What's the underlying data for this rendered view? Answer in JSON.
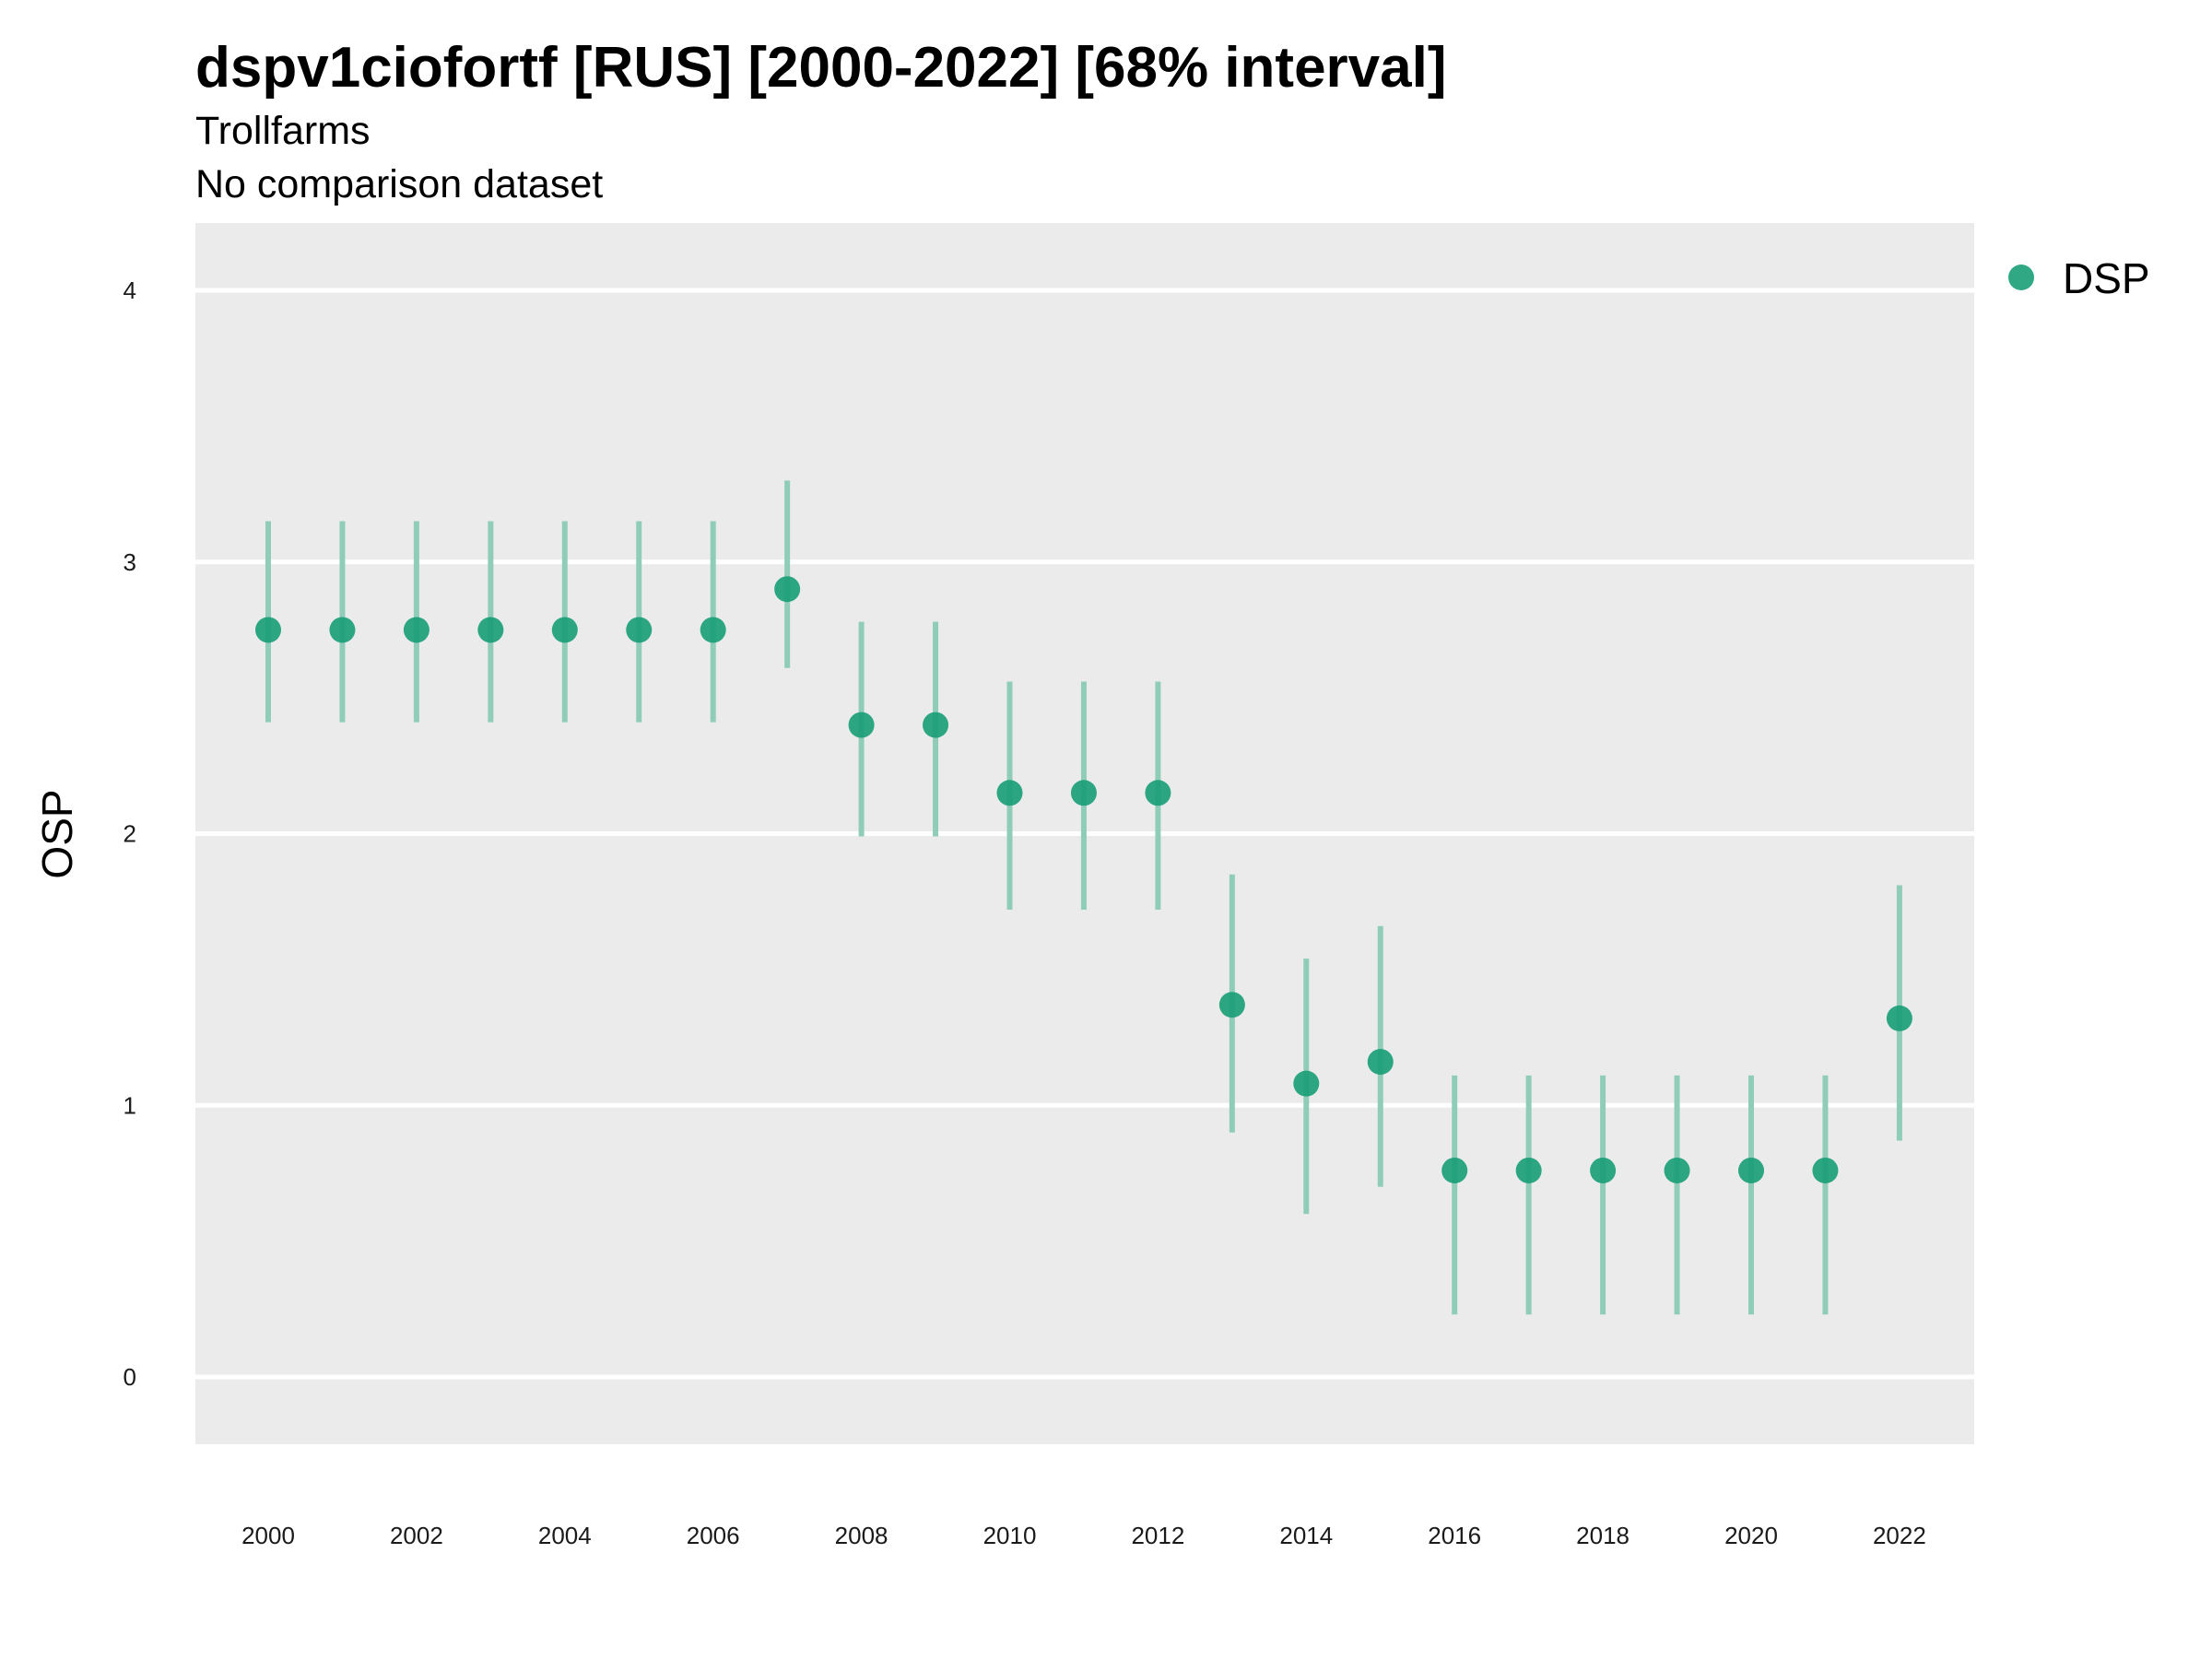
{
  "chart_data": {
    "type": "scatter",
    "title": "dspv1ciofortf [RUS] [2000-2022] [68% interval]",
    "subtitle": "Trollfarms",
    "caption_line": "No comparison dataset",
    "xlabel": "",
    "ylabel": "OSP",
    "xlim": [
      1999,
      2023
    ],
    "ylim": [
      -0.25,
      4.25
    ],
    "x_ticks": [
      2000,
      2002,
      2004,
      2006,
      2008,
      2010,
      2012,
      2014,
      2016,
      2018,
      2020,
      2022
    ],
    "y_ticks": [
      0,
      1,
      2,
      3,
      4
    ],
    "grid": true,
    "legend_position": "right",
    "colors": {
      "panel_background": "#ebebeb",
      "grid": "#ffffff",
      "point": "#1b9e77",
      "interval": "#8fcdb9"
    },
    "series": [
      {
        "name": "DSP",
        "x": [
          2000,
          2001,
          2002,
          2003,
          2004,
          2005,
          2006,
          2007,
          2008,
          2009,
          2010,
          2011,
          2012,
          2013,
          2014,
          2015,
          2016,
          2017,
          2018,
          2019,
          2020,
          2021,
          2022
        ],
        "y": [
          2.75,
          2.75,
          2.75,
          2.75,
          2.75,
          2.75,
          2.75,
          2.9,
          2.4,
          2.4,
          2.15,
          2.15,
          2.15,
          1.37,
          1.08,
          1.16,
          0.76,
          0.76,
          0.76,
          0.76,
          0.76,
          0.76,
          1.32
        ],
        "lower": [
          2.41,
          2.41,
          2.41,
          2.41,
          2.41,
          2.41,
          2.41,
          2.61,
          1.99,
          1.99,
          1.72,
          1.72,
          1.72,
          0.9,
          0.6,
          0.7,
          0.23,
          0.23,
          0.23,
          0.23,
          0.23,
          0.23,
          0.87
        ],
        "upper": [
          3.15,
          3.15,
          3.15,
          3.15,
          3.15,
          3.15,
          3.15,
          3.3,
          2.78,
          2.78,
          2.56,
          2.56,
          2.56,
          1.85,
          1.54,
          1.66,
          1.11,
          1.11,
          1.11,
          1.11,
          1.11,
          1.11,
          1.81
        ]
      }
    ]
  }
}
